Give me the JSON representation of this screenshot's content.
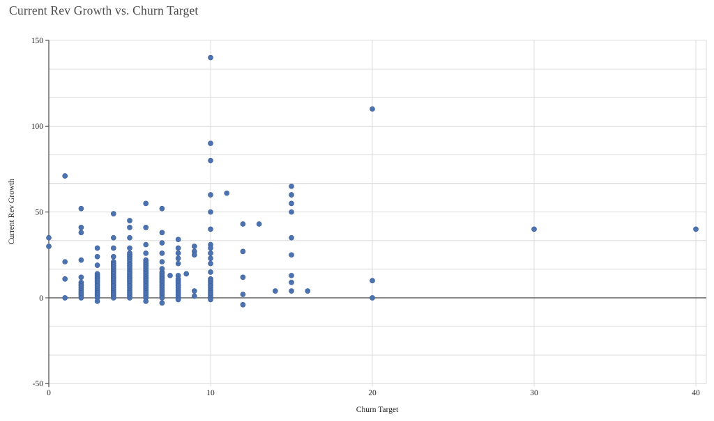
{
  "chart_data": {
    "type": "scatter",
    "title": "Current Rev Growth vs. Churn Target",
    "xlabel": "Churn Target",
    "ylabel": "Current Rev Growth",
    "xlim": [
      0,
      40.65
    ],
    "ylim": [
      -50,
      150
    ],
    "x_ticks": [
      0,
      10,
      20,
      30,
      40
    ],
    "y_ticks": [
      150,
      100,
      50,
      0,
      -50
    ],
    "y_gridline_step": 16.6667,
    "grid": true,
    "legend": false,
    "colors": {
      "marker": "#4C72B0",
      "marker_edge": "#3E639F",
      "grid": "#dcdcdc",
      "axis": "#565656",
      "zero_line": "#3f3f3f",
      "tick_label": "#1f1f1f",
      "title": "#4c4c4c"
    },
    "marker_radius": 3.5,
    "columns": [
      {
        "x": 0,
        "ys": [
          35,
          30
        ]
      },
      {
        "x": 1,
        "ys": [
          71,
          21,
          11,
          0
        ]
      },
      {
        "x": 2,
        "ys": [
          52,
          41,
          38,
          22,
          12,
          9,
          8,
          7,
          6,
          5,
          4,
          3,
          2,
          1,
          0
        ]
      },
      {
        "x": 3,
        "ys": [
          29,
          24,
          19,
          14,
          13,
          12,
          11,
          10,
          9,
          8,
          7,
          6,
          5,
          4,
          3,
          2,
          1,
          0,
          -2
        ]
      },
      {
        "x": 4,
        "ys": [
          49,
          35,
          29,
          24,
          21,
          20,
          19,
          18,
          17,
          16,
          15,
          14,
          13,
          12,
          11,
          10,
          9,
          8,
          7,
          6,
          5,
          4,
          3,
          2,
          1,
          0
        ]
      },
      {
        "x": 5,
        "ys": [
          45,
          41,
          35,
          29,
          26,
          25,
          24,
          23,
          22,
          21,
          20,
          19,
          18,
          17,
          16,
          15,
          14,
          13,
          12,
          11,
          10,
          9,
          8,
          7,
          6,
          5,
          4,
          3,
          2,
          1,
          0
        ]
      },
      {
        "x": 6,
        "ys": [
          55,
          41,
          31,
          26,
          22,
          21,
          20,
          19,
          18,
          17,
          16,
          15,
          14,
          13,
          12,
          11,
          10,
          9,
          8,
          7,
          6,
          5,
          4,
          3,
          2,
          1,
          0,
          -2
        ]
      },
      {
        "x": 7,
        "ys": [
          52,
          38,
          32,
          26,
          21,
          17,
          15,
          14,
          13,
          12,
          11,
          10,
          9,
          8,
          7,
          6,
          5,
          4,
          3,
          2,
          1,
          0,
          -3
        ]
      },
      {
        "x": 7.5,
        "ys": [
          13
        ]
      },
      {
        "x": 8,
        "ys": [
          34,
          29,
          26,
          23,
          20,
          13,
          11,
          10,
          9,
          8,
          7,
          6,
          5,
          4,
          3,
          2,
          1,
          0,
          -1
        ]
      },
      {
        "x": 8.5,
        "ys": [
          14
        ]
      },
      {
        "x": 9,
        "ys": [
          30,
          27,
          25,
          4,
          1
        ]
      },
      {
        "x": 10,
        "ys": [
          140,
          90,
          80,
          60,
          50,
          40,
          31,
          29,
          26,
          23,
          20,
          15,
          11,
          10,
          9,
          8,
          7,
          6,
          5,
          4,
          3,
          2,
          1,
          0,
          -1
        ]
      },
      {
        "x": 11,
        "ys": [
          61
        ]
      },
      {
        "x": 12,
        "ys": [
          43,
          27,
          12,
          2,
          -4
        ]
      },
      {
        "x": 13,
        "ys": [
          43
        ]
      },
      {
        "x": 14,
        "ys": [
          4
        ]
      },
      {
        "x": 15,
        "ys": [
          65,
          60,
          55,
          50,
          35,
          25,
          13,
          9,
          4
        ]
      },
      {
        "x": 16,
        "ys": [
          4
        ]
      },
      {
        "x": 20,
        "ys": [
          110,
          10,
          0
        ]
      },
      {
        "x": 30,
        "ys": [
          40
        ]
      },
      {
        "x": 40,
        "ys": [
          40
        ]
      }
    ]
  }
}
